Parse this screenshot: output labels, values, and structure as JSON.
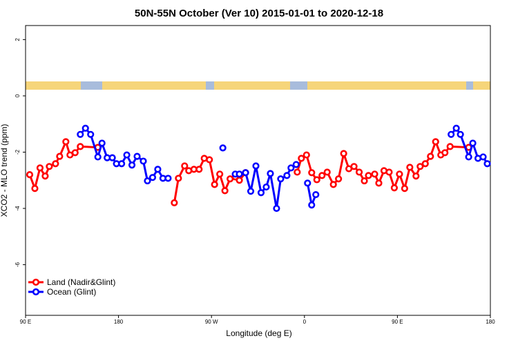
{
  "chart_data": {
    "type": "line",
    "title": "50N-55N October (Ver 10)   2015-01-01 to 2020-12-18",
    "x_label": "Longitude (deg E)",
    "y_label": "XCO2 - MLO trend (ppm)",
    "xlim": [
      90,
      540
    ],
    "ylim": [
      -7.8,
      2.5
    ],
    "xticks": [
      {
        "value": 90,
        "label": "90 E"
      },
      180,
      {
        "value": 270,
        "label": "90 W"
      },
      {
        "value": 360,
        "label": "0"
      },
      {
        "value": 450,
        "label": "90 E"
      },
      {
        "value": 540,
        "label": "180"
      }
    ],
    "yticks": [
      2,
      0,
      -2,
      -4,
      -6
    ],
    "legend": "bottomleft",
    "series": [
      {
        "name": "Land (Nadir&Glint)",
        "color": "#ff0000",
        "x": [
          94,
          99,
          104,
          109,
          113,
          119,
          123,
          129,
          133,
          138,
          143,
          160,
          null,
          234,
          238,
          244,
          248,
          253,
          258,
          263,
          268,
          273,
          278,
          283,
          288,
          293,
          297,
          303,
          null,
          353,
          357,
          362,
          367,
          372,
          377,
          382,
          388,
          393,
          398,
          403,
          408,
          413,
          418,
          422,
          428,
          432,
          437,
          442,
          447,
          452,
          457,
          462,
          468,
          472,
          477,
          482,
          487,
          492,
          496,
          501,
          519
        ],
        "values": [
          -2.8,
          -3.29,
          -2.56,
          -2.85,
          -2.51,
          -2.41,
          -2.15,
          -1.63,
          -2.1,
          -2.02,
          -1.8,
          -1.83,
          null,
          -3.8,
          -2.93,
          -2.49,
          -2.66,
          -2.61,
          -2.61,
          -2.22,
          -2.27,
          -3.15,
          -2.78,
          -3.37,
          -2.95,
          -2.88,
          -3.0,
          -2.73,
          null,
          -2.71,
          -2.22,
          -2.1,
          -2.73,
          -2.98,
          -2.83,
          -2.71,
          -3.15,
          -2.95,
          -2.05,
          -2.59,
          -2.51,
          -2.71,
          -3.02,
          -2.83,
          -2.78,
          -3.1,
          -2.66,
          -2.71,
          -3.27,
          -2.78,
          -3.29,
          -2.54,
          -2.85,
          -2.51,
          -2.41,
          -2.15,
          -1.63,
          -2.1,
          -2.02,
          -1.8,
          -1.83
        ]
      },
      {
        "name": "Ocean (Glint)",
        "color": "#0000ff",
        "x": [
          143,
          148,
          153,
          160,
          164,
          169,
          174,
          178,
          183,
          188,
          193,
          198,
          204,
          208,
          213,
          218,
          223,
          228,
          null,
          281,
          null,
          293,
          297,
          303,
          308,
          313,
          318,
          323,
          327,
          333,
          337,
          343,
          347,
          352,
          null,
          363,
          367,
          371,
          null,
          502,
          507,
          511,
          519,
          523,
          528,
          533,
          537
        ],
        "values": [
          -1.37,
          -1.15,
          -1.37,
          -2.17,
          -1.68,
          -2.2,
          -2.2,
          -2.41,
          -2.41,
          -2.1,
          -2.46,
          -2.15,
          -2.32,
          -3.02,
          -2.9,
          -2.61,
          -2.93,
          -2.93,
          null,
          -1.85,
          null,
          -2.78,
          -2.78,
          -2.73,
          -3.39,
          -2.49,
          -3.44,
          -3.24,
          -2.76,
          -4.0,
          -2.95,
          -2.83,
          -2.56,
          -2.44,
          null,
          -3.1,
          -3.88,
          -3.51,
          null,
          -1.37,
          -1.15,
          -1.37,
          -2.17,
          -1.68,
          -2.22,
          -2.17,
          -2.41
        ]
      }
    ]
  }
}
